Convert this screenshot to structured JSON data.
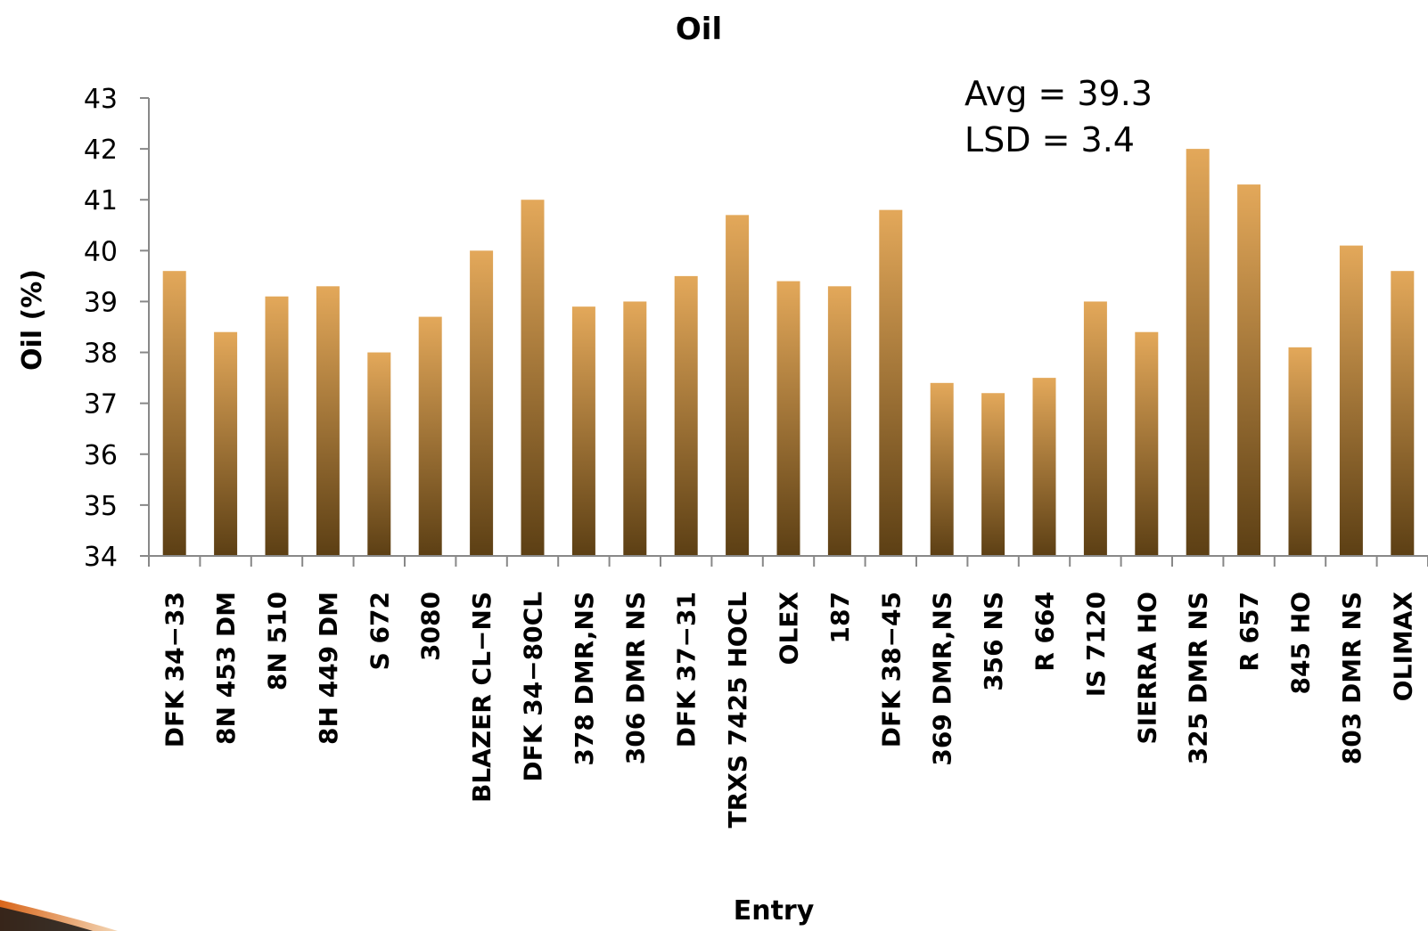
{
  "chart_data": {
    "type": "bar",
    "title": "Oil",
    "xlabel": "Entry",
    "ylabel": "Oil (%)",
    "ylim": [
      34,
      43
    ],
    "yticks": [
      34,
      35,
      36,
      37,
      38,
      39,
      40,
      41,
      42,
      43
    ],
    "grid": false,
    "annotations": [
      "Avg = 39.3",
      "LSD = 3.4"
    ],
    "categories": [
      "DFK 34-33",
      "8N 453 DM",
      "8N 510",
      "8H 449 DM",
      "S 672",
      "3080",
      "BLAZER CL-NS",
      "DFK 34-80CL",
      "378 DMR,NS",
      "306 DMR NS",
      "DFK 37-31",
      "TRXS 7425 HOCL",
      "OLEX",
      "187",
      "DFK 38-45",
      "369 DMR,NS",
      "356 NS",
      "R 664",
      "IS 7120",
      "SIERRA HO",
      "325 DMR NS",
      "R 657",
      "845 HO",
      "803 DMR NS",
      "OLIMAX"
    ],
    "values": [
      39.6,
      38.4,
      39.1,
      39.3,
      38.0,
      38.7,
      40.0,
      41.0,
      38.9,
      39.0,
      39.5,
      40.7,
      39.4,
      39.3,
      40.8,
      37.4,
      37.2,
      37.5,
      39.0,
      38.4,
      42.0,
      41.3,
      38.1,
      40.1,
      39.6
    ],
    "colors": {
      "bar_top": "#e3a85a",
      "bar_bottom": "#5c3f14",
      "axis": "#888888"
    }
  }
}
